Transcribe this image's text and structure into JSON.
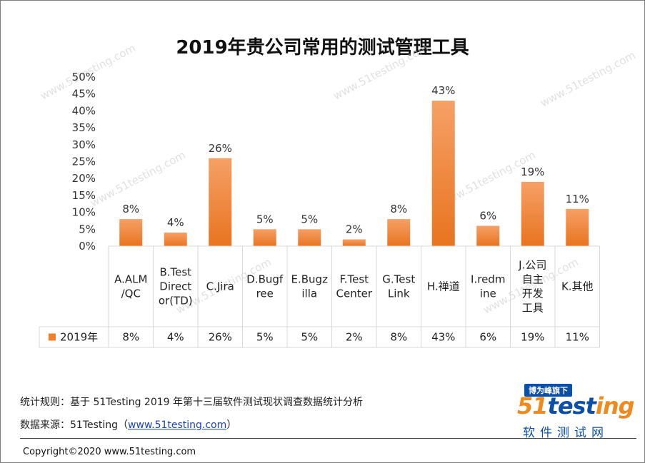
{
  "chart_data": {
    "type": "bar",
    "title": "2019年贵公司常用的测试管理工具",
    "categories": [
      [
        "A.ALM",
        "/QC"
      ],
      [
        "B.Test",
        "Direct",
        "or(TD)"
      ],
      [
        "C.Jira"
      ],
      [
        "D.Bugf",
        "ree"
      ],
      [
        "E.Bugz",
        "illa"
      ],
      [
        "F.Test",
        "Center"
      ],
      [
        "G.Test",
        "Link"
      ],
      [
        "H.禅道"
      ],
      [
        "I.redm",
        "ine"
      ],
      [
        "J.公司",
        "自主",
        "开发",
        "工具"
      ],
      [
        "K.其他"
      ]
    ],
    "series": [
      {
        "name": "2019年",
        "values": [
          8,
          4,
          26,
          5,
          5,
          2,
          8,
          43,
          6,
          19,
          11
        ],
        "labels": [
          "8%",
          "4%",
          "26%",
          "5%",
          "5%",
          "2%",
          "8%",
          "43%",
          "6%",
          "19%",
          "11%"
        ],
        "color": "#f07f2e"
      }
    ],
    "y_ticks": [
      "0%",
      "5%",
      "10%",
      "15%",
      "20%",
      "25%",
      "30%",
      "35%",
      "40%",
      "45%",
      "50%"
    ],
    "ylim": [
      0,
      50
    ],
    "data_table": true,
    "grid": false
  },
  "watermark": "www.51testing.com",
  "footer": {
    "note": "统计规则：基于 51Testing 2019 年第十三届软件测试现状调查数据统计分析",
    "source_prefix": "数据来源：51Testing（",
    "source_link": "www.51testing.com",
    "source_suffix": "）",
    "copyright": "Copyright©2020 www.51testing.com"
  },
  "logo": {
    "banner": "博为峰旗下",
    "word_a": "51",
    "word_b": "test",
    "word_c": "ing",
    "sub": "软件测试网"
  },
  "colors": {
    "bar": "#f07f2e",
    "bar_light": "#f6a066",
    "brand_blue": "#0c4fa8",
    "brand_orange": "#f08a1c"
  }
}
